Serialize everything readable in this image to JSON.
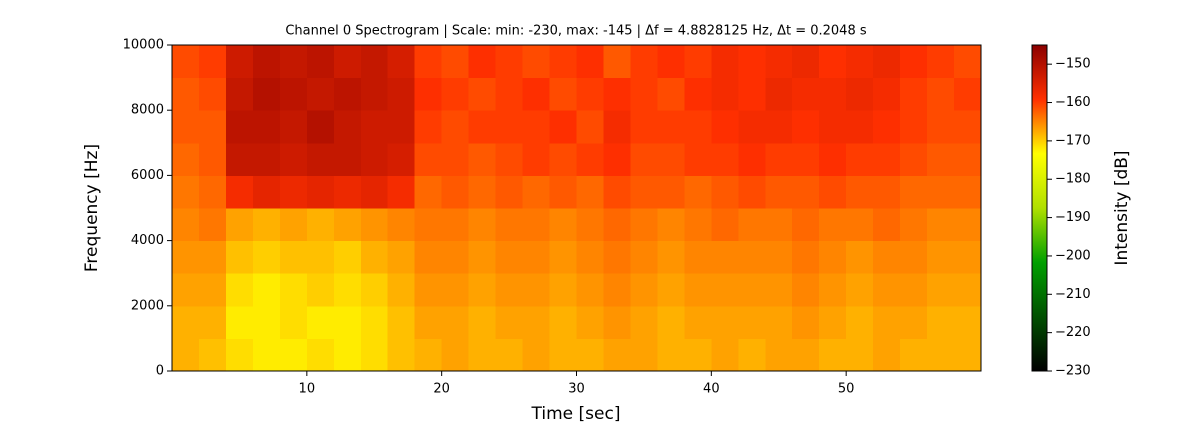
{
  "chart_data": {
    "type": "heatmap",
    "title": "Channel 0 Spectrogram | Scale: min: -230, max: -145 | Δf = 4.8828125 Hz, Δt = 0.2048 s",
    "x_label": "Time [sec]",
    "y_label": "Frequency [Hz]",
    "colorbar_label": "Intensity [dB]",
    "x": [
      1,
      3,
      5,
      7,
      9,
      11,
      13,
      15,
      17,
      19,
      21,
      23,
      25,
      27,
      29,
      31,
      33,
      35,
      37,
      39,
      41,
      43,
      45,
      47,
      49,
      51,
      53,
      55,
      57,
      59
    ],
    "y": [
      500,
      1500,
      2500,
      3500,
      4500,
      5500,
      6500,
      7500,
      8500,
      9500
    ],
    "z": [
      [
        -168,
        -169,
        -171,
        -172,
        -172,
        -171,
        -172,
        -171,
        -169,
        -168,
        -167,
        -168,
        -168,
        -167,
        -168,
        -168,
        -167,
        -167,
        -168,
        -168,
        -167,
        -168,
        -167,
        -167,
        -168,
        -168,
        -167,
        -168,
        -168,
        -168
      ],
      [
        -168,
        -168,
        -172,
        -172,
        -171,
        -172,
        -172,
        -171,
        -169,
        -167,
        -167,
        -168,
        -167,
        -167,
        -168,
        -167,
        -166,
        -167,
        -168,
        -167,
        -167,
        -167,
        -167,
        -166,
        -167,
        -168,
        -167,
        -167,
        -168,
        -168
      ],
      [
        -167,
        -167,
        -171,
        -172,
        -171,
        -170,
        -171,
        -170,
        -168,
        -166,
        -166,
        -167,
        -166,
        -166,
        -167,
        -166,
        -165,
        -166,
        -167,
        -166,
        -166,
        -166,
        -166,
        -165,
        -166,
        -167,
        -166,
        -166,
        -167,
        -167
      ],
      [
        -166,
        -166,
        -169,
        -170,
        -169,
        -169,
        -170,
        -168,
        -167,
        -165,
        -165,
        -166,
        -165,
        -165,
        -166,
        -165,
        -164,
        -165,
        -166,
        -165,
        -165,
        -165,
        -165,
        -164,
        -165,
        -166,
        -165,
        -165,
        -166,
        -166
      ],
      [
        -165,
        -164,
        -167,
        -168,
        -167,
        -168,
        -167,
        -166,
        -165,
        -164,
        -164,
        -165,
        -164,
        -164,
        -165,
        -164,
        -163,
        -164,
        -165,
        -164,
        -163,
        -164,
        -164,
        -163,
        -164,
        -164,
        -163,
        -164,
        -165,
        -165
      ],
      [
        -164,
        -163,
        -158,
        -156,
        -157,
        -156,
        -157,
        -156,
        -158,
        -163,
        -162,
        -163,
        -162,
        -163,
        -162,
        -163,
        -161,
        -162,
        -162,
        -163,
        -162,
        -161,
        -162,
        -162,
        -161,
        -162,
        -162,
        -163,
        -163,
        -163
      ],
      [
        -163,
        -162,
        -152,
        -152,
        -153,
        -152,
        -152,
        -153,
        -154,
        -161,
        -161,
        -162,
        -161,
        -160,
        -161,
        -160,
        -159,
        -161,
        -161,
        -160,
        -160,
        -159,
        -160,
        -160,
        -159,
        -160,
        -160,
        -161,
        -162,
        -162
      ],
      [
        -162,
        -162,
        -151,
        -151,
        -152,
        -150,
        -152,
        -153,
        -153,
        -160,
        -161,
        -160,
        -160,
        -160,
        -159,
        -161,
        -158,
        -160,
        -160,
        -160,
        -159,
        -158,
        -158,
        -159,
        -158,
        -158,
        -159,
        -160,
        -161,
        -161
      ],
      [
        -162,
        -161,
        -152,
        -150,
        -151,
        -152,
        -151,
        -152,
        -153,
        -159,
        -160,
        -161,
        -160,
        -159,
        -161,
        -160,
        -159,
        -160,
        -161,
        -159,
        -158,
        -159,
        -157,
        -158,
        -158,
        -157,
        -158,
        -160,
        -161,
        -160
      ],
      [
        -161,
        -160,
        -153,
        -151,
        -152,
        -151,
        -153,
        -152,
        -154,
        -160,
        -161,
        -159,
        -160,
        -161,
        -160,
        -159,
        -162,
        -160,
        -159,
        -160,
        -158,
        -159,
        -158,
        -157,
        -159,
        -158,
        -157,
        -159,
        -160,
        -161
      ]
    ],
    "xlim": [
      0,
      60
    ],
    "xticks": [
      10,
      20,
      30,
      40,
      50
    ],
    "ylim": [
      0,
      10000
    ],
    "yticks": [
      0,
      2000,
      4000,
      6000,
      8000,
      10000
    ],
    "clim": [
      -230,
      -145
    ],
    "cticks": [
      {
        "value": -150,
        "label": "−150"
      },
      {
        "value": -160,
        "label": "−160"
      },
      {
        "value": -170,
        "label": "−170"
      },
      {
        "value": -180,
        "label": "−180"
      },
      {
        "value": -190,
        "label": "−190"
      },
      {
        "value": -200,
        "label": "−200"
      },
      {
        "value": -210,
        "label": "−210"
      },
      {
        "value": -220,
        "label": "−220"
      },
      {
        "value": -230,
        "label": "−230"
      }
    ],
    "colormap": [
      "#000000",
      "#005000",
      "#00a000",
      "#b0e000",
      "#ffff00",
      "#ff3000",
      "#8b0000"
    ]
  }
}
